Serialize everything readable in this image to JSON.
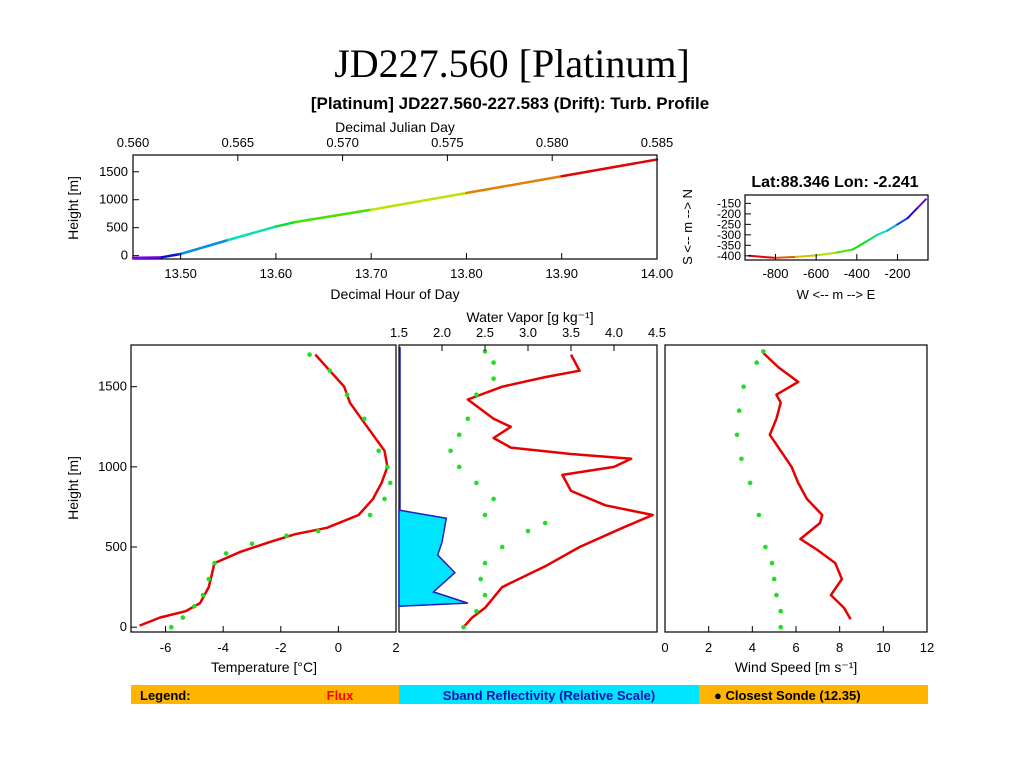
{
  "slide_title": "JD227.560 [Platinum]",
  "figure_title": "[Platinum] JD227.560-227.583 (Drift): Turb. Profile",
  "location_label": "Lat:88.346 Lon:  -2.241",
  "legend": {
    "label": "Legend:",
    "flux": "Flux",
    "sband": "Sband Reflectivity (Relative Scale)",
    "sonde": "● Closest Sonde (12.35)",
    "colors": {
      "bar": "#ffb400",
      "flux": "#ff0000",
      "sband": "#00e5ff",
      "sonde": "#00dd00"
    }
  },
  "colors": {
    "flux": "#e60000",
    "sonde": "#22dd22",
    "sband_fill": "#00e5ff",
    "sband_edge": "#2020c0",
    "axis": "#000000"
  },
  "chart_data": [
    {
      "id": "time-height",
      "type": "line",
      "xlabel": "Decimal Hour of Day",
      "x2label": "Decimal Julian Day",
      "ylabel": "Height [m]",
      "xlim": [
        13.45,
        14.0
      ],
      "x2lim": [
        0.56,
        0.585
      ],
      "ylim": [
        -60,
        1800
      ],
      "xticks": [
        "13.50",
        "13.60",
        "13.70",
        "13.80",
        "13.90",
        "14.00"
      ],
      "x2ticks": [
        "0.560",
        "0.565",
        "0.570",
        "0.575",
        "0.580",
        "0.585"
      ],
      "yticks": [
        "0",
        "500",
        "1000",
        "1500"
      ],
      "x": [
        13.45,
        13.48,
        13.5,
        13.55,
        13.6,
        13.62,
        13.7,
        13.8,
        13.9,
        14.0
      ],
      "y": [
        -40,
        -30,
        30,
        280,
        520,
        600,
        820,
        1120,
        1420,
        1720
      ],
      "color_scale": "time (purple to red)"
    },
    {
      "id": "track",
      "type": "line",
      "xlabel": "W <-- m --> E",
      "ylabel": "S <-- m --> N",
      "xlim": [
        -950,
        -50
      ],
      "ylim": [
        -420,
        -110
      ],
      "xticks": [
        "-800",
        "-600",
        "-400",
        "-200"
      ],
      "yticks": [
        "-150",
        "-200",
        "-250",
        "-300",
        "-350",
        "-400"
      ],
      "x": [
        -930,
        -800,
        -700,
        -600,
        -500,
        -420,
        -350,
        -300,
        -250,
        -200,
        -150,
        -100,
        -60
      ],
      "y": [
        -400,
        -410,
        -405,
        -398,
        -385,
        -370,
        -330,
        -300,
        -280,
        -250,
        -220,
        -170,
        -130
      ],
      "color_scale": "time (red to purple)"
    },
    {
      "id": "temperature",
      "type": "line",
      "xlabel": "Temperature [°C]",
      "ylabel": "Height [m]",
      "xlim": [
        -7.2,
        2
      ],
      "ylim": [
        -30,
        1760
      ],
      "xticks": [
        "-6",
        "-4",
        "-2",
        "0",
        "2"
      ],
      "yticks": [
        "0",
        "500",
        "1000",
        "1500"
      ],
      "series": [
        {
          "name": "Flux",
          "x": [
            -6.9,
            -6.2,
            -5.3,
            -4.8,
            -4.5,
            -4.3,
            -3.4,
            -2.4,
            -1.5,
            -0.4,
            0.7,
            1.2,
            1.5,
            1.7,
            1.6,
            1.2,
            0.8,
            0.4,
            0.2,
            -0.3,
            -0.8
          ],
          "y": [
            10,
            60,
            100,
            150,
            250,
            400,
            470,
            530,
            580,
            620,
            700,
            800,
            900,
            1000,
            1100,
            1200,
            1300,
            1400,
            1500,
            1600,
            1700
          ]
        },
        {
          "name": "Closest Sonde (12.35)",
          "x": [
            -5.8,
            -5.4,
            -5.0,
            -4.7,
            -4.5,
            -4.3,
            -3.9,
            -3.0,
            -1.8,
            -0.7,
            1.1,
            1.6,
            1.8,
            1.7,
            1.4,
            0.9,
            0.3,
            -0.3,
            -1.0
          ],
          "y": [
            0,
            60,
            130,
            200,
            300,
            400,
            460,
            520,
            570,
            600,
            700,
            800,
            900,
            1000,
            1100,
            1300,
            1450,
            1600,
            1700
          ]
        }
      ]
    },
    {
      "id": "water-vapor",
      "type": "line",
      "xlabel": "Water Vapor [g kg⁻¹]",
      "xlim": [
        1.5,
        4.5
      ],
      "ylim": [
        -30,
        1760
      ],
      "xticks": [
        "1.5",
        "2.0",
        "2.5",
        "3.0",
        "3.5",
        "4.0",
        "4.5"
      ],
      "series": [
        {
          "name": "Flux",
          "x": [
            2.25,
            2.35,
            2.5,
            2.7,
            3.2,
            3.6,
            4.1,
            4.45,
            3.9,
            3.5,
            3.4,
            4.0,
            4.2,
            3.5,
            2.8,
            2.6,
            2.8,
            2.6,
            2.3,
            2.7,
            3.2,
            3.6,
            3.5
          ],
          "y": [
            0,
            60,
            120,
            250,
            380,
            500,
            620,
            700,
            760,
            850,
            950,
            1000,
            1050,
            1080,
            1120,
            1180,
            1250,
            1300,
            1420,
            1500,
            1560,
            1600,
            1700
          ]
        },
        {
          "name": "Closest Sonde (12.35)",
          "x": [
            2.25,
            2.4,
            2.5,
            2.45,
            2.5,
            2.7,
            3.0,
            3.2,
            2.5,
            2.6,
            2.4,
            2.2,
            2.1,
            2.2,
            2.3,
            2.4,
            2.6,
            2.6,
            2.5
          ],
          "y": [
            0,
            100,
            200,
            300,
            400,
            500,
            600,
            650,
            700,
            800,
            900,
            1000,
            1100,
            1200,
            1300,
            1450,
            1550,
            1650,
            1720
          ]
        },
        {
          "name": "Sband Reflectivity (Relative Scale)",
          "x": [
            1.5,
            2.3,
            1.9,
            2.15,
            1.95,
            2.0,
            2.05,
            1.5
          ],
          "y": [
            130,
            150,
            220,
            340,
            450,
            530,
            680,
            730
          ]
        }
      ]
    },
    {
      "id": "wind-speed",
      "type": "line",
      "xlabel": "Wind Speed [m s⁻¹]",
      "xlim": [
        0,
        12
      ],
      "ylim": [
        -30,
        1760
      ],
      "xticks": [
        "0",
        "2",
        "4",
        "6",
        "8",
        "10",
        "12"
      ],
      "series": [
        {
          "name": "Flux",
          "x": [
            8.5,
            8.2,
            7.6,
            8.1,
            7.8,
            7.0,
            6.2,
            7.1,
            7.2,
            6.5,
            6.1,
            5.8,
            5.3,
            4.8,
            5.1,
            5.3,
            5.1,
            6.1,
            5.2,
            4.5
          ],
          "y": [
            50,
            120,
            200,
            300,
            400,
            480,
            550,
            650,
            700,
            800,
            900,
            1000,
            1100,
            1200,
            1300,
            1400,
            1450,
            1530,
            1620,
            1710
          ]
        },
        {
          "name": "Closest Sonde (12.35)",
          "x": [
            5.3,
            5.3,
            5.1,
            5.0,
            4.9,
            4.6,
            4.3,
            3.9,
            3.5,
            3.3,
            3.4,
            3.6,
            4.2,
            4.5
          ],
          "y": [
            0,
            100,
            200,
            300,
            400,
            500,
            700,
            900,
            1050,
            1200,
            1350,
            1500,
            1650,
            1720
          ]
        }
      ]
    }
  ]
}
